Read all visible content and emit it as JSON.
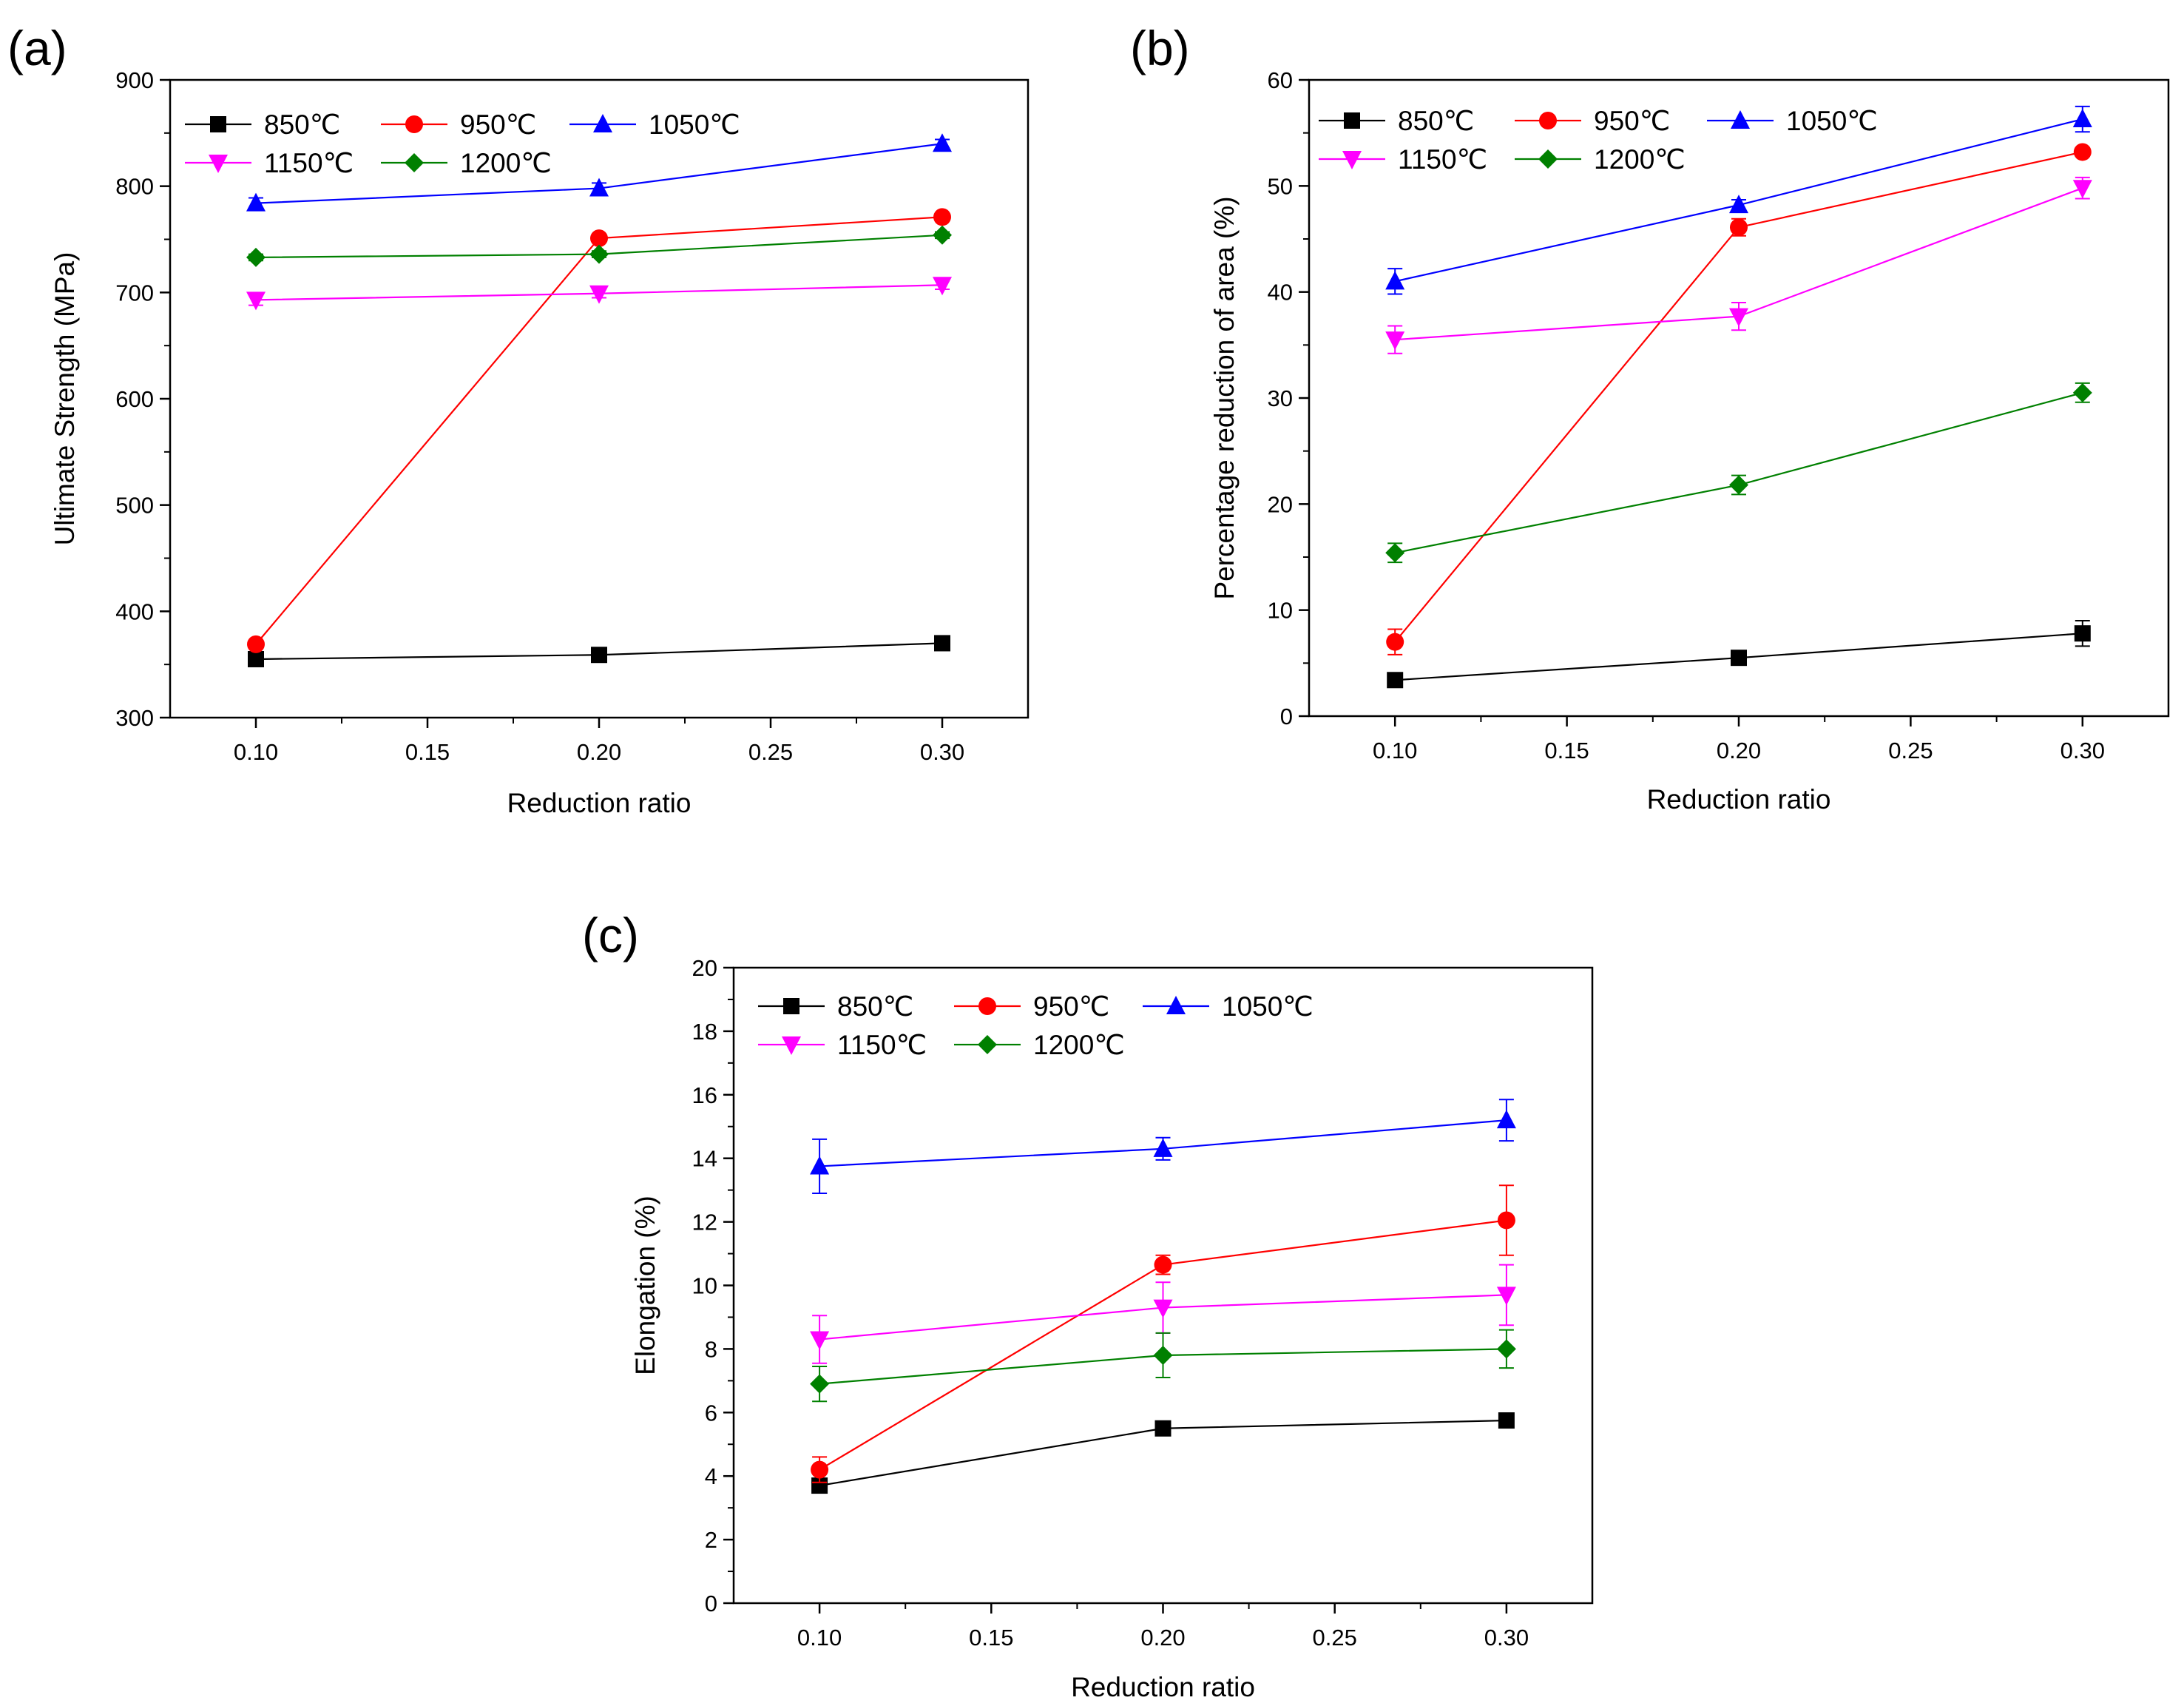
{
  "colors": {
    "850": "#000000",
    "950": "#ff0000",
    "1050": "#0000ff",
    "1150": "#ff00ff",
    "1200": "#008000"
  },
  "chart_data": [
    {
      "panel_label": "(a)",
      "type": "line",
      "xlabel": "Reduction ratio",
      "ylabel": "Ultimate Strength (MPa)",
      "xlim": [
        0.075,
        0.325
      ],
      "ylim": [
        300,
        900
      ],
      "xticks": [
        "0.10",
        "0.15",
        "0.20",
        "0.25",
        "0.30"
      ],
      "yticks": [
        "300",
        "400",
        "500",
        "600",
        "700",
        "800",
        "900"
      ],
      "legend_position": "top-left",
      "x": [
        0.1,
        0.2,
        0.3
      ],
      "series": [
        {
          "name": "850℃",
          "color": "#000000",
          "marker": "square",
          "values": [
            355,
            359,
            370
          ],
          "errors": [
            3,
            3,
            3
          ]
        },
        {
          "name": "950℃",
          "color": "#ff0000",
          "marker": "circle",
          "values": [
            369,
            751,
            771
          ],
          "errors": [
            3,
            3,
            3
          ]
        },
        {
          "name": "1050℃",
          "color": "#0000ff",
          "marker": "triangle-up",
          "values": [
            784,
            798,
            840
          ],
          "errors": [
            5,
            5,
            4
          ]
        },
        {
          "name": "1150℃",
          "color": "#ff00ff",
          "marker": "triangle-down",
          "values": [
            693,
            699,
            707
          ],
          "errors": [
            5,
            4,
            4
          ]
        },
        {
          "name": "1200℃",
          "color": "#008000",
          "marker": "diamond",
          "values": [
            733,
            736,
            754
          ],
          "errors": [
            3,
            3,
            3
          ]
        }
      ]
    },
    {
      "panel_label": "(b)",
      "type": "line",
      "xlabel": "Reduction ratio",
      "ylabel": "Percentage reduction of area (%)",
      "xlim": [
        0.075,
        0.325
      ],
      "ylim": [
        0,
        60
      ],
      "xticks": [
        "0.10",
        "0.15",
        "0.20",
        "0.25",
        "0.30"
      ],
      "yticks": [
        "0",
        "10",
        "20",
        "30",
        "40",
        "50",
        "60"
      ],
      "legend_position": "top-left",
      "x": [
        0.1,
        0.2,
        0.3
      ],
      "series": [
        {
          "name": "850℃",
          "color": "#000000",
          "marker": "square",
          "values": [
            3.4,
            5.5,
            7.8
          ],
          "errors": [
            0.4,
            0.6,
            1.2
          ]
        },
        {
          "name": "950℃",
          "color": "#ff0000",
          "marker": "circle",
          "values": [
            7.0,
            46.1,
            53.2
          ],
          "errors": [
            1.2,
            0.8,
            0.4
          ]
        },
        {
          "name": "1050℃",
          "color": "#0000ff",
          "marker": "triangle-up",
          "values": [
            41.0,
            48.2,
            56.3
          ],
          "errors": [
            1.2,
            0.5,
            1.2
          ]
        },
        {
          "name": "1150℃",
          "color": "#ff00ff",
          "marker": "triangle-down",
          "values": [
            35.5,
            37.7,
            49.8
          ],
          "errors": [
            1.3,
            1.3,
            1.0
          ]
        },
        {
          "name": "1200℃",
          "color": "#008000",
          "marker": "diamond",
          "values": [
            15.4,
            21.8,
            30.5
          ],
          "errors": [
            0.9,
            0.9,
            0.9
          ]
        }
      ]
    },
    {
      "panel_label": "(c)",
      "type": "line",
      "xlabel": "Reduction ratio",
      "ylabel": "Elongation (%)",
      "xlim": [
        0.075,
        0.325
      ],
      "ylim": [
        0,
        20
      ],
      "xticks": [
        "0.10",
        "0.15",
        "0.20",
        "0.25",
        "0.30"
      ],
      "yticks": [
        "0",
        "2",
        "4",
        "6",
        "8",
        "10",
        "12",
        "14",
        "16",
        "18",
        "20"
      ],
      "legend_position": "top-left",
      "x": [
        0.1,
        0.2,
        0.3
      ],
      "series": [
        {
          "name": "850℃",
          "color": "#000000",
          "marker": "square",
          "values": [
            3.7,
            5.5,
            5.75
          ],
          "errors": [
            0.2,
            0.1,
            0.2
          ]
        },
        {
          "name": "950℃",
          "color": "#ff0000",
          "marker": "circle",
          "values": [
            4.2,
            10.65,
            12.05
          ],
          "errors": [
            0.4,
            0.3,
            1.1
          ]
        },
        {
          "name": "1050℃",
          "color": "#0000ff",
          "marker": "triangle-up",
          "values": [
            13.75,
            14.3,
            15.2
          ],
          "errors": [
            0.85,
            0.35,
            0.65
          ]
        },
        {
          "name": "1150℃",
          "color": "#ff00ff",
          "marker": "triangle-down",
          "values": [
            8.3,
            9.3,
            9.7
          ],
          "errors": [
            0.75,
            0.8,
            0.95
          ]
        },
        {
          "name": "1200℃",
          "color": "#008000",
          "marker": "diamond",
          "values": [
            6.9,
            7.8,
            8.0
          ],
          "errors": [
            0.55,
            0.7,
            0.6
          ]
        }
      ]
    }
  ]
}
